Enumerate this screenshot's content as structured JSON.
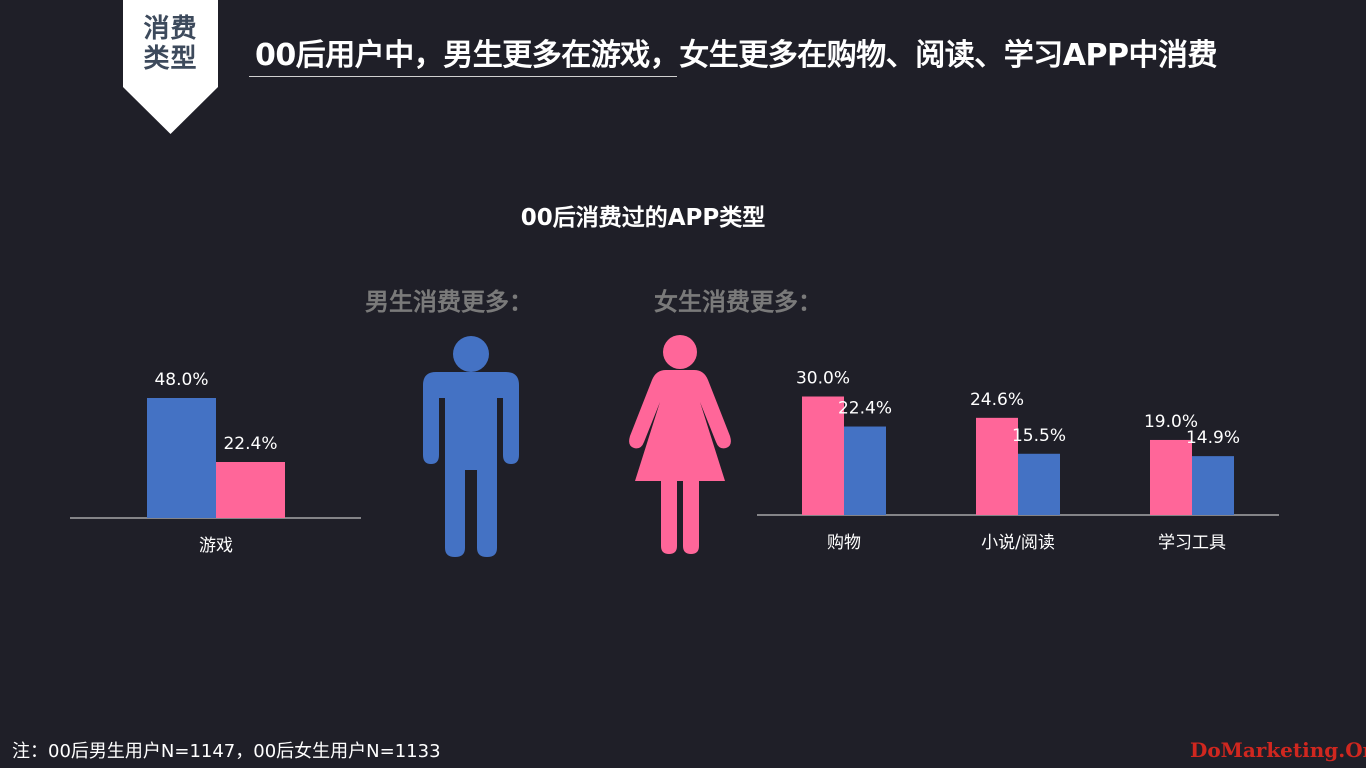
{
  "tag": {
    "line1": "消费",
    "line2": "类型"
  },
  "headline": "00后用户中，男生更多在游戏，女生更多在购物、阅读、学习APP中消费",
  "chart_title": "00后消费过的APP类型",
  "male_group_label": "男生消费更多：",
  "female_group_label": "女生消费更多：",
  "footnote": "注：00后男生用户N=1147，00后女生用户N=1133",
  "watermark": "DoMarketing.Org",
  "colors": {
    "male": "#4472c4",
    "female": "#ff6699",
    "background": "#1f1f28"
  },
  "icons": {
    "male": "male-figure-icon",
    "female": "female-figure-icon"
  },
  "chart_data": [
    {
      "type": "bar",
      "categories": [
        "游戏"
      ],
      "series": [
        {
          "values": [
            48.0
          ],
          "labels": [
            "48.0%"
          ],
          "color": "#4472c4"
        },
        {
          "values": [
            22.4
          ],
          "labels": [
            "22.4%"
          ],
          "color": "#ff6699"
        }
      ],
      "unit": "%",
      "ylim": [
        0,
        50
      ],
      "grid": false
    },
    {
      "type": "bar",
      "categories": [
        "购物",
        "小说/阅读",
        "学习工具"
      ],
      "series": [
        {
          "values": [
            30.0,
            24.6,
            19.0
          ],
          "labels": [
            "30.0%",
            "24.6%",
            "19.0%"
          ],
          "color": "#ff6699"
        },
        {
          "values": [
            22.4,
            15.5,
            14.9
          ],
          "labels": [
            "22.4%",
            "15.5%",
            "14.9%"
          ],
          "color": "#4472c4"
        }
      ],
      "unit": "%",
      "ylim": [
        0,
        50
      ],
      "grid": false
    }
  ]
}
